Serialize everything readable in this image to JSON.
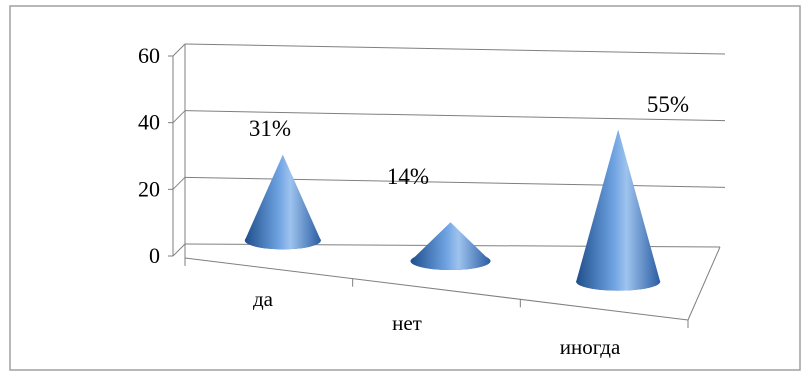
{
  "chart_data": {
    "type": "bar",
    "style": "3d-cone",
    "categories": [
      "да",
      "нет",
      "иногда"
    ],
    "values": [
      31,
      14,
      55
    ],
    "data_labels": [
      "31%",
      "14%",
      "55%"
    ],
    "title": "",
    "xlabel": "",
    "ylabel": "",
    "ylim": [
      0,
      60
    ],
    "y_ticks": [
      "0",
      "20",
      "40",
      "60"
    ],
    "grid": true,
    "legend": "none",
    "colors": {
      "cone_dark": "#1f4e8c",
      "cone_mid": "#3d7cc9",
      "cone_light": "#9ec3ee",
      "gridline": "#7f7f7f",
      "frame": "#a0a0a0"
    }
  }
}
